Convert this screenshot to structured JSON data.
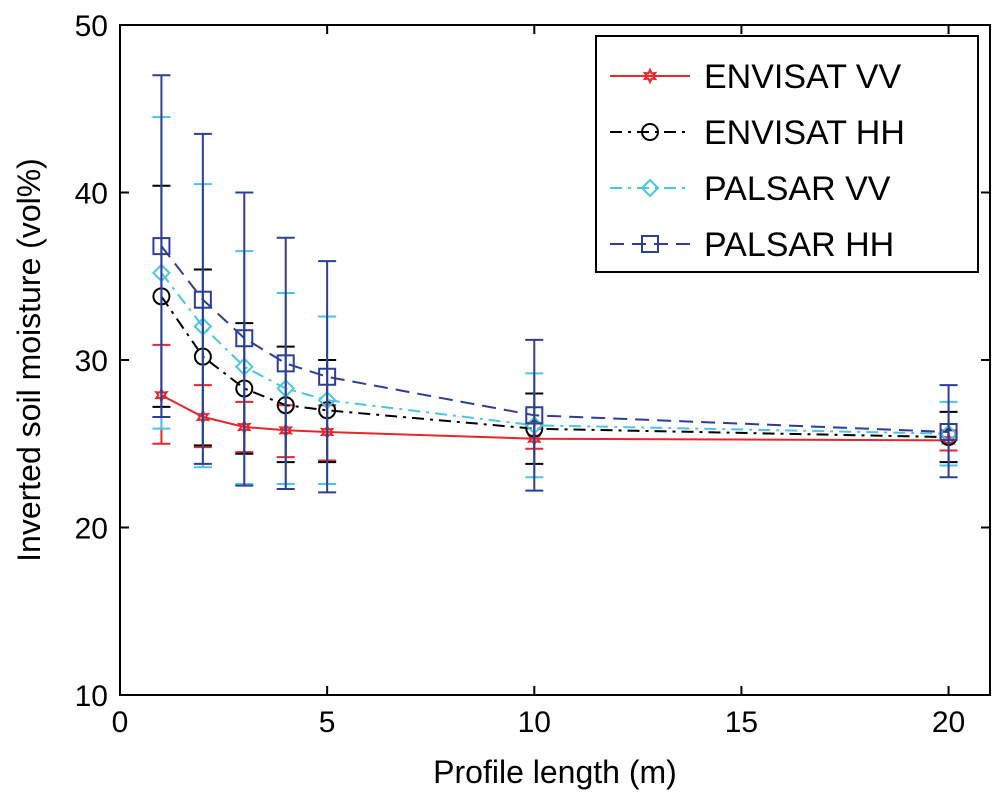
{
  "chart_data": {
    "type": "line",
    "title": "",
    "xlabel": "Profile length (m)",
    "ylabel": "Inverted soil moisture (vol%)",
    "xlim": [
      0,
      21
    ],
    "ylim": [
      10,
      50
    ],
    "xticks": [
      0,
      5,
      10,
      15,
      20
    ],
    "yticks": [
      10,
      20,
      30,
      40,
      50
    ],
    "grid": false,
    "legend_position": "top-right",
    "x": [
      1,
      2,
      3,
      4,
      5,
      10,
      20
    ],
    "series": [
      {
        "name": "ENVISAT VV",
        "color": "#e8262b",
        "dash": "solid",
        "marker": "star",
        "values": [
          27.9,
          26.6,
          26.0,
          25.8,
          25.7,
          25.3,
          25.2
        ],
        "err_low": [
          25.0,
          24.8,
          24.5,
          24.2,
          24.0,
          24.7,
          24.6
        ],
        "err_high": [
          30.9,
          28.5,
          27.5,
          27.3,
          27.3,
          26.2,
          25.8
        ]
      },
      {
        "name": "ENVISAT HH",
        "color": "#000000",
        "dash": "dashdot",
        "marker": "circle",
        "values": [
          33.8,
          30.2,
          28.3,
          27.3,
          27.0,
          25.9,
          25.4
        ],
        "err_low": [
          27.2,
          24.9,
          24.4,
          23.9,
          23.9,
          23.8,
          23.9
        ],
        "err_high": [
          40.4,
          35.4,
          32.2,
          30.8,
          30.0,
          28.0,
          26.9
        ]
      },
      {
        "name": "PALSAR VV",
        "color": "#49c5e6",
        "dash": "dashdot",
        "marker": "diamond",
        "values": [
          35.2,
          32.0,
          29.6,
          28.3,
          27.6,
          26.1,
          25.6
        ],
        "err_low": [
          25.9,
          23.6,
          22.6,
          22.6,
          22.6,
          23.0,
          23.7
        ],
        "err_high": [
          44.5,
          40.5,
          36.5,
          34.0,
          32.6,
          29.2,
          27.5
        ]
      },
      {
        "name": "PALSAR HH",
        "color": "#2e3d99",
        "dash": "dash",
        "marker": "square",
        "values": [
          36.8,
          33.6,
          31.3,
          29.8,
          29.0,
          26.7,
          25.7
        ],
        "err_low": [
          26.6,
          23.8,
          22.5,
          22.3,
          22.1,
          22.2,
          23.0
        ],
        "err_high": [
          47.0,
          43.5,
          40.0,
          37.3,
          35.9,
          31.2,
          28.5
        ]
      }
    ]
  }
}
